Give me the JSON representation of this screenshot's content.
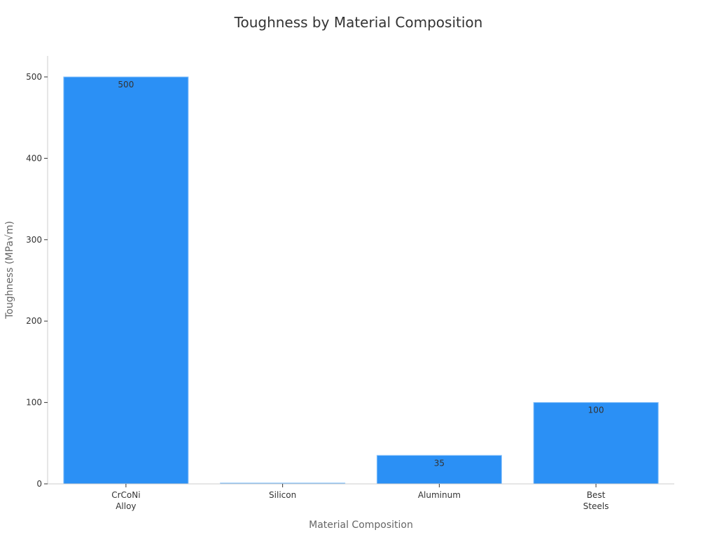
{
  "chart_data": {
    "type": "bar",
    "title": "Toughness by Material Composition",
    "xlabel": "Material Composition",
    "ylabel": "Toughness (MPa√m)",
    "categories": [
      [
        "CrCoNi",
        "Alloy"
      ],
      [
        "Silicon"
      ],
      [
        "Aluminum"
      ],
      [
        "Best",
        "Steels"
      ]
    ],
    "values": [
      500,
      1,
      35,
      100
    ],
    "data_labels": [
      "500",
      "",
      "35",
      "100"
    ],
    "ylim": [
      0,
      525
    ],
    "yticks": [
      0,
      100,
      200,
      300,
      400,
      500
    ],
    "grid": false,
    "bar_color": "#2b90f5",
    "bar_edge_color": "#8cc4fb",
    "axis_color": "#cccccc"
  }
}
